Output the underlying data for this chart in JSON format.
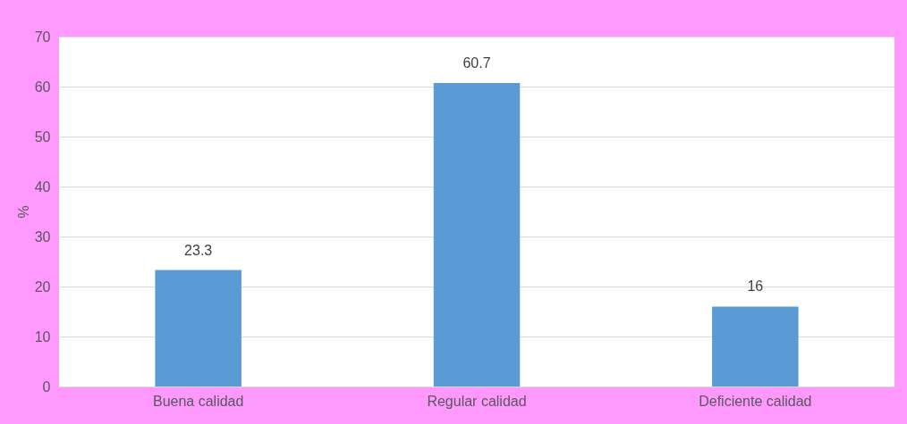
{
  "chart_data": {
    "type": "bar",
    "ylabel": "%",
    "categories": [
      "Buena calidad",
      "Regular calidad",
      "Deficiente calidad"
    ],
    "values": [
      23.3,
      60.7,
      16
    ],
    "color": "#5b9bd5",
    "ylim": [
      0,
      70
    ],
    "yticks": [
      0,
      10,
      20,
      30,
      40,
      50,
      60,
      70
    ],
    "grid": "y",
    "data_labels": true
  }
}
